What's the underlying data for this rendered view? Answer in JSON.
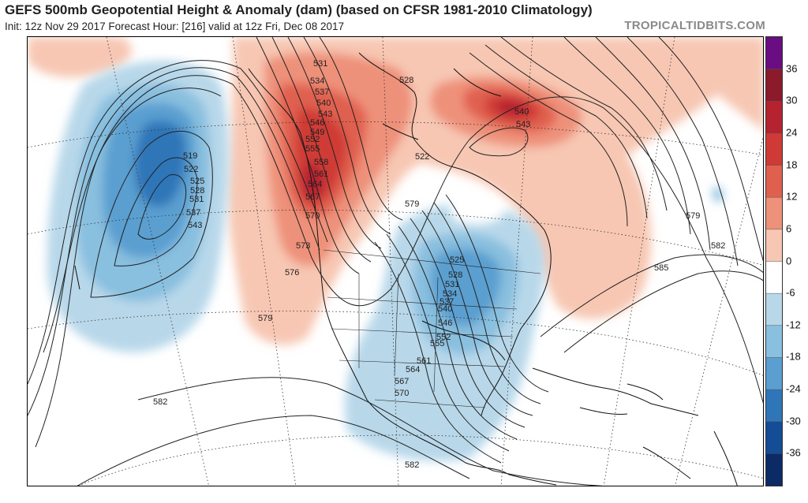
{
  "header": {
    "title": "GEFS 500mb Geopotential Height & Anomaly (dam) (based on CFSR 1981-2010 Climatology)",
    "subtitle": "Init: 12z Nov 29 2017   Forecast Hour: [216]   valid at 12z Fri, Dec 08 2017",
    "brand": "TROPICALTIDBITS.COM"
  },
  "colorbar": {
    "labels": [
      "36",
      "30",
      "24",
      "18",
      "12",
      "6",
      "0",
      "-6",
      "-12",
      "-18",
      "-24",
      "-30",
      "-36"
    ],
    "colors": [
      "#6a0d83",
      "#8b1a2b",
      "#b52230",
      "#cf3a36",
      "#e0604f",
      "#ee917a",
      "#f7c7b3",
      "#ffffff",
      "#b8d8ea",
      "#89bfdf",
      "#5a9fd0",
      "#2f76b8",
      "#144c95",
      "#0b2a66"
    ]
  },
  "contour_labels": [
    {
      "text": "531"
    },
    {
      "text": "534"
    },
    {
      "text": "537"
    },
    {
      "text": "540"
    },
    {
      "text": "543"
    },
    {
      "text": "546"
    },
    {
      "text": "549"
    },
    {
      "text": "552"
    },
    {
      "text": "555"
    },
    {
      "text": "558"
    },
    {
      "text": "561"
    },
    {
      "text": "564"
    },
    {
      "text": "567"
    },
    {
      "text": "570"
    },
    {
      "text": "573"
    },
    {
      "text": "576"
    },
    {
      "text": "579"
    },
    {
      "text": "582"
    },
    {
      "text": "519"
    },
    {
      "text": "522"
    },
    {
      "text": "525"
    },
    {
      "text": "528"
    },
    {
      "text": "531"
    },
    {
      "text": "537"
    },
    {
      "text": "543"
    },
    {
      "text": "525"
    },
    {
      "text": "528"
    },
    {
      "text": "531"
    },
    {
      "text": "534"
    },
    {
      "text": "537"
    },
    {
      "text": "540"
    },
    {
      "text": "546"
    },
    {
      "text": "552"
    },
    {
      "text": "555"
    },
    {
      "text": "561"
    },
    {
      "text": "564"
    },
    {
      "text": "567"
    },
    {
      "text": "570"
    },
    {
      "text": "579"
    },
    {
      "text": "582"
    },
    {
      "text": "585"
    },
    {
      "text": "582"
    },
    {
      "text": "579"
    },
    {
      "text": "540"
    },
    {
      "text": "543"
    },
    {
      "text": "528"
    },
    {
      "text": "522"
    }
  ]
}
